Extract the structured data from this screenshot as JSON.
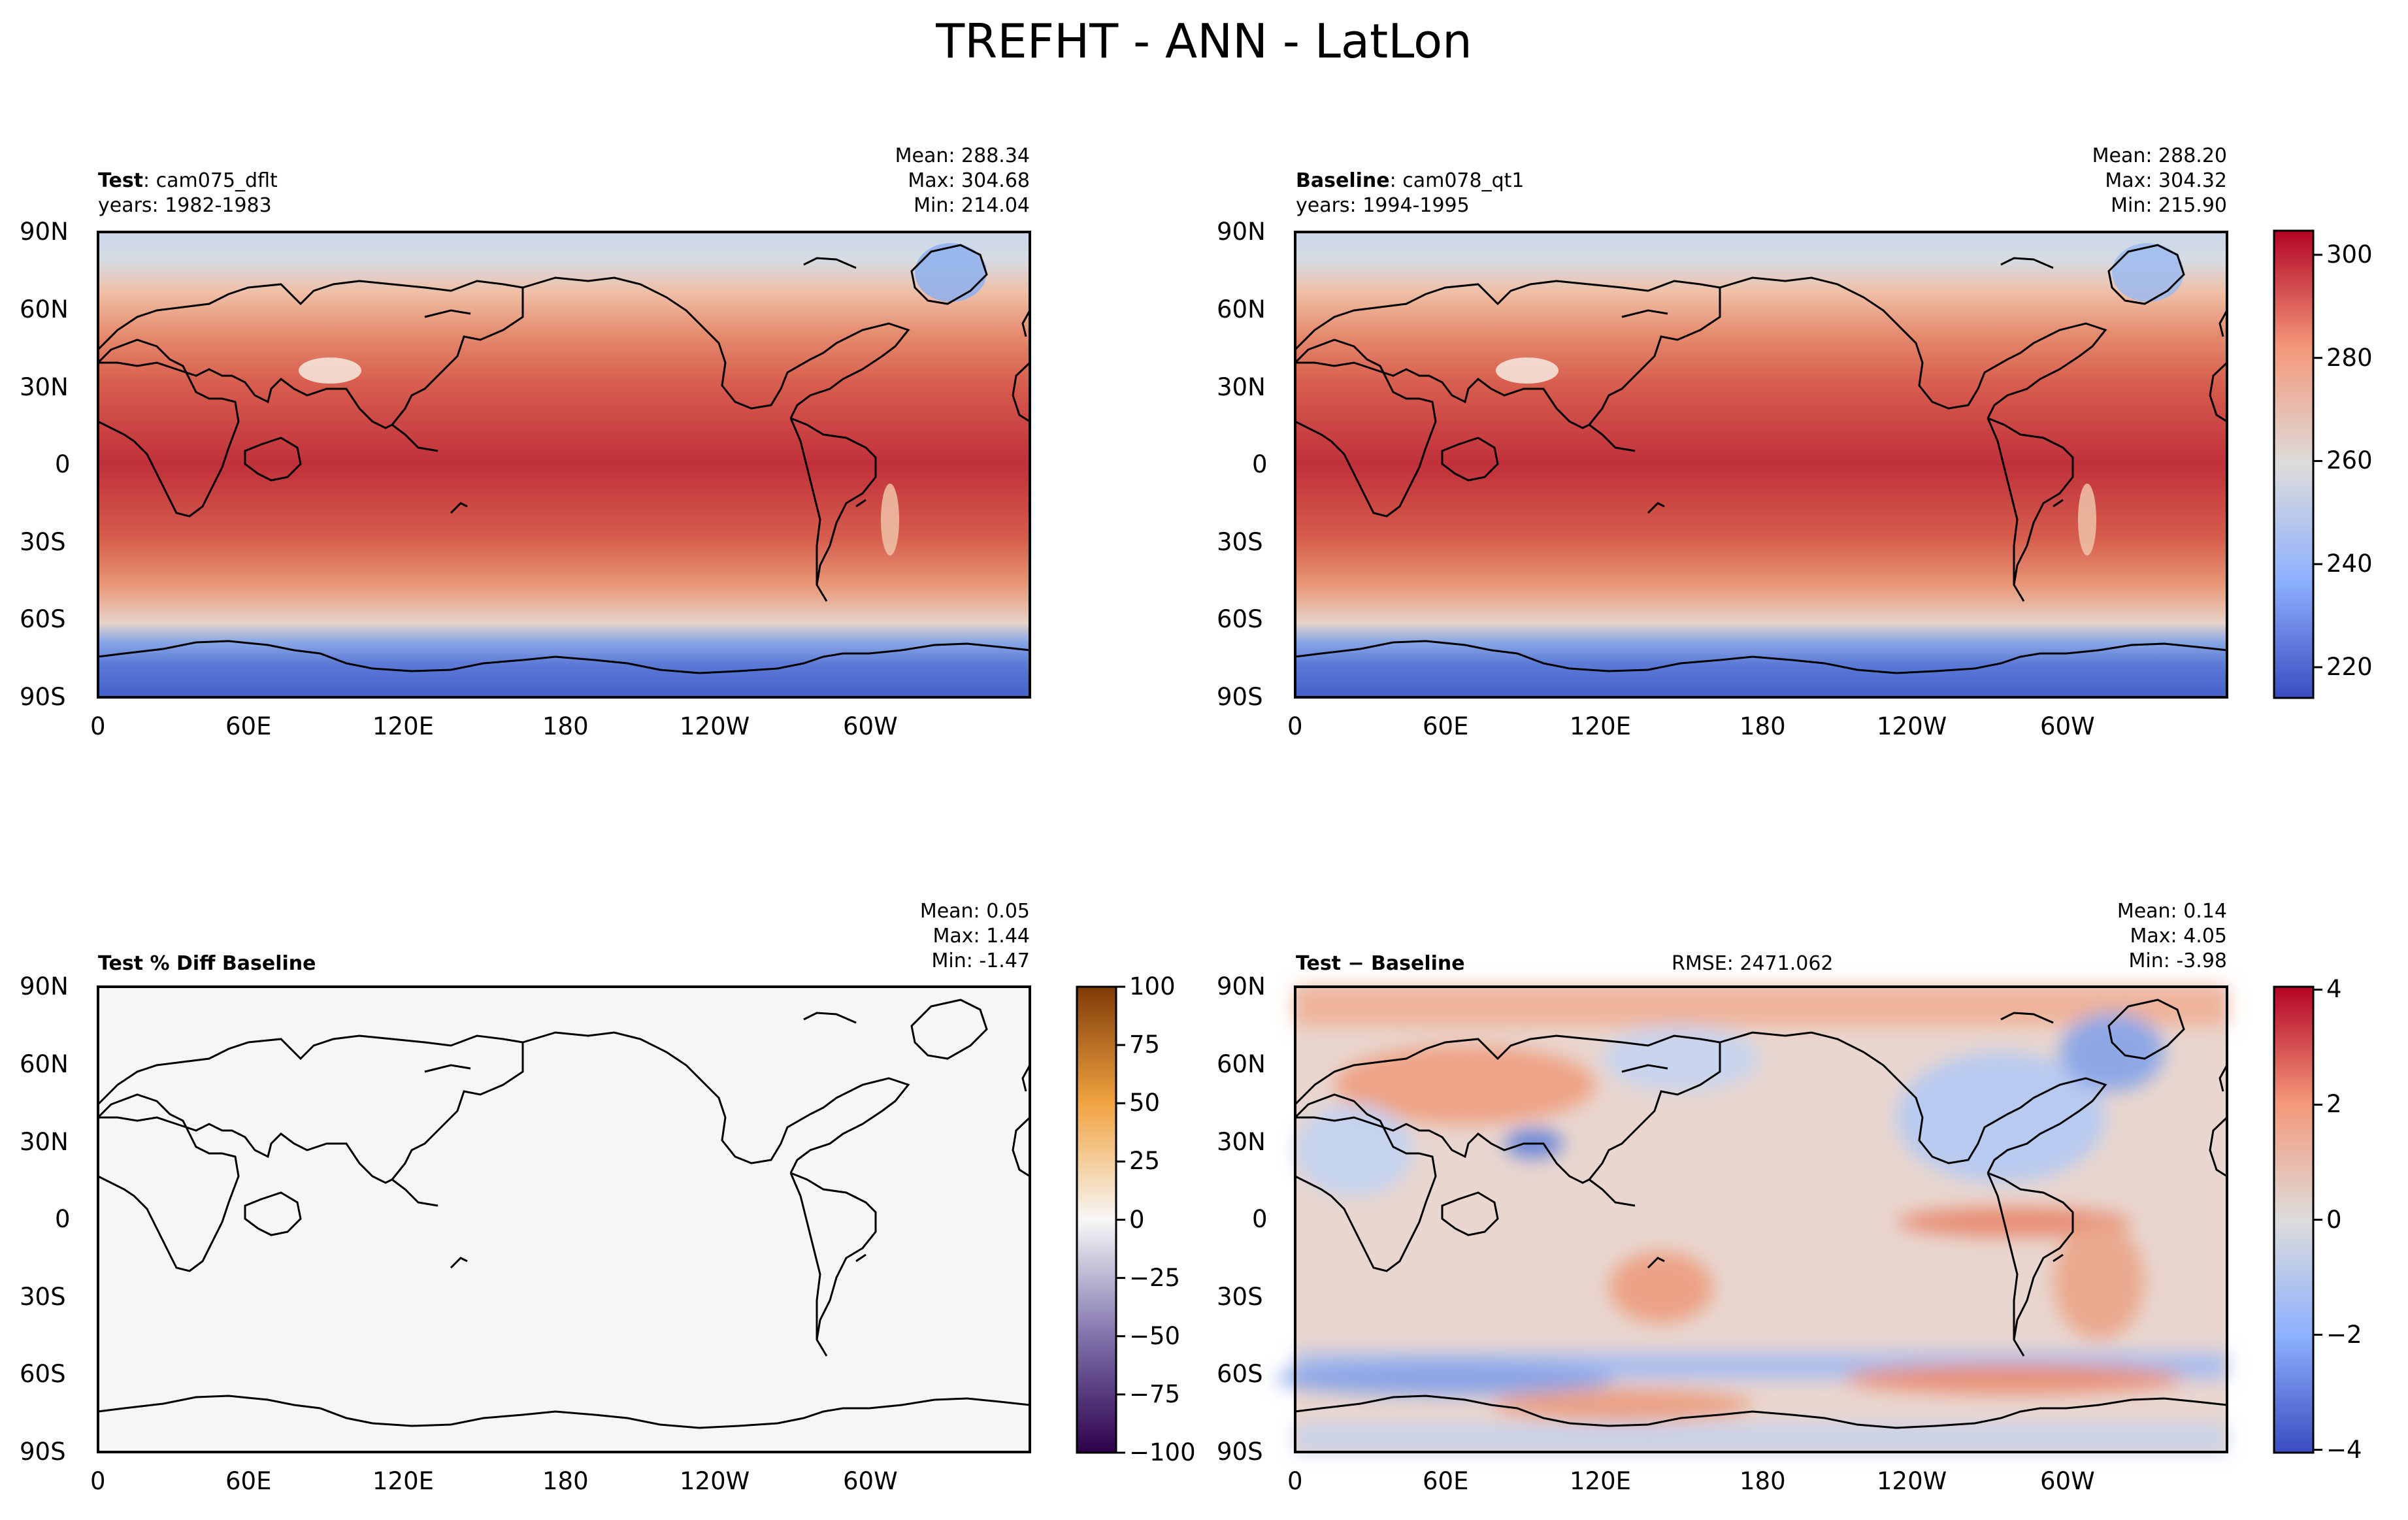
{
  "title": "TREFHT - ANN - LatLon",
  "colors": {
    "seq_low": "#3b4cc0",
    "seq_mid": "#dddcdb",
    "seq_high": "#b40426",
    "pct_low": "#2d004b",
    "pct_mid": "#f7f7f7",
    "pct_high": "#7f3b08",
    "coast": "#000000"
  },
  "chart_data": [
    {
      "type": "heatmap",
      "id": "test",
      "label_bold": "Test",
      "label_rest": ": cam075_dflt",
      "years": "years: 1982-1983",
      "stats": {
        "mean": "Mean: 288.34",
        "max": "Max: 304.68",
        "min": "Min: 214.04"
      },
      "x_ticks": [
        "0",
        "60E",
        "120E",
        "180",
        "120W",
        "60W"
      ],
      "y_ticks": [
        "90N",
        "60N",
        "30N",
        "0",
        "30S",
        "60S",
        "90S"
      ],
      "value_range": [
        214.04,
        304.68
      ]
    },
    {
      "type": "heatmap",
      "id": "baseline",
      "label_bold": "Baseline",
      "label_rest": ": cam078_qt1",
      "years": "years: 1994-1995",
      "stats": {
        "mean": "Mean: 288.20",
        "max": "Max: 304.32",
        "min": "Min: 215.90"
      },
      "x_ticks": [
        "0",
        "60E",
        "120E",
        "180",
        "120W",
        "60W"
      ],
      "y_ticks": [
        "90N",
        "60N",
        "30N",
        "0",
        "30S",
        "60S",
        "90S"
      ],
      "value_range": [
        215.9,
        304.32
      ],
      "colorbar": {
        "ticks": [
          "220",
          "240",
          "260",
          "280",
          "300"
        ],
        "tick_values": [
          220,
          240,
          260,
          280,
          300
        ],
        "range": [
          214.04,
          304.68
        ]
      }
    },
    {
      "type": "heatmap",
      "id": "pctdiff",
      "label_bold": "Test % Diff Baseline",
      "label_rest": "",
      "stats": {
        "mean": "Mean:  0.05",
        "max": "Max:  1.44",
        "min": "Min: -1.47"
      },
      "x_ticks": [
        "0",
        "60E",
        "120E",
        "180",
        "120W",
        "60W"
      ],
      "y_ticks": [
        "90N",
        "60N",
        "30N",
        "0",
        "30S",
        "60S",
        "90S"
      ],
      "value_range": [
        -1.47,
        1.44
      ],
      "colorbar": {
        "ticks": [
          "100",
          "75",
          "50",
          "25",
          "0",
          "−25",
          "−50",
          "−75",
          "−100"
        ],
        "tick_values": [
          100,
          75,
          50,
          25,
          0,
          -25,
          -50,
          -75,
          -100
        ],
        "range": [
          -100,
          100
        ]
      }
    },
    {
      "type": "heatmap",
      "id": "diff",
      "label_bold": "Test",
      "label_rest": " − Baseline",
      "rmse": "RMSE: 2471.062",
      "stats": {
        "mean": "Mean:  0.14",
        "max": "Max:  4.05",
        "min": "Min: -3.98"
      },
      "x_ticks": [
        "0",
        "60E",
        "120E",
        "180",
        "120W",
        "60W"
      ],
      "y_ticks": [
        "90N",
        "60N",
        "30N",
        "0",
        "30S",
        "60S",
        "90S"
      ],
      "value_range": [
        -3.98,
        4.05
      ],
      "colorbar": {
        "ticks": [
          "4",
          "2",
          "0",
          "−2",
          "−4"
        ],
        "tick_values": [
          4,
          2,
          0,
          -2,
          -4
        ],
        "range": [
          -4.05,
          4.05
        ]
      }
    }
  ]
}
